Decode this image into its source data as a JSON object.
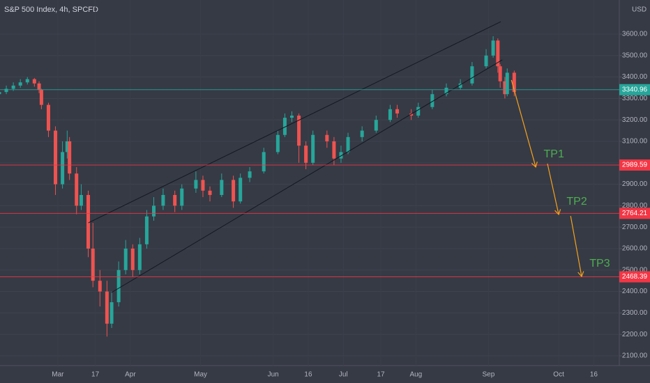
{
  "chart_data": {
    "type": "candlestick",
    "title": "S&P 500 Index, 4h, SPCFD",
    "currency": "USD",
    "xlim": [
      36.3,
      300.9
    ],
    "ylim": [
      2054.5,
      3759
    ],
    "xticks": [
      {
        "value": 61,
        "label": "Mar"
      },
      {
        "value": 77,
        "label": "17"
      },
      {
        "value": 92,
        "label": "Apr"
      },
      {
        "value": 122,
        "label": "May"
      },
      {
        "value": 153,
        "label": "Jun"
      },
      {
        "value": 168,
        "label": "16"
      },
      {
        "value": 183,
        "label": "Jul"
      },
      {
        "value": 199,
        "label": "17"
      },
      {
        "value": 214,
        "label": "Aug"
      },
      {
        "value": 245,
        "label": "Sep"
      },
      {
        "value": 275,
        "label": "Oct"
      },
      {
        "value": 290,
        "label": "16"
      }
    ],
    "yticks": [
      {
        "value": 2100,
        "label": "2100.00"
      },
      {
        "value": 2200,
        "label": "2200.00"
      },
      {
        "value": 2300,
        "label": "2300.00"
      },
      {
        "value": 2400,
        "label": "2400.00"
      },
      {
        "value": 2500,
        "label": "2500.00"
      },
      {
        "value": 2600,
        "label": "2600.00"
      },
      {
        "value": 2700,
        "label": "2700.00"
      },
      {
        "value": 2800,
        "label": "2800.00"
      },
      {
        "value": 2900,
        "label": "2900.00"
      },
      {
        "value": 3000,
        "label": "3000.00"
      },
      {
        "value": 3100,
        "label": "3100.00"
      },
      {
        "value": 3200,
        "label": "3200.00"
      },
      {
        "value": 3300,
        "label": "3300.00"
      },
      {
        "value": 3400,
        "label": "3400.00"
      },
      {
        "value": 3500,
        "label": "3500.00"
      },
      {
        "value": 3600,
        "label": "3600.00"
      }
    ],
    "up_color": "#26a69a",
    "down_color": "#ef5350",
    "candles": [
      {
        "x": 36,
        "open": 3320,
        "high": 3345,
        "low": 3310,
        "close": 3330
      },
      {
        "x": 39,
        "open": 3330,
        "high": 3360,
        "low": 3320,
        "close": 3345
      },
      {
        "x": 42,
        "open": 3345,
        "high": 3375,
        "low": 3335,
        "close": 3360
      },
      {
        "x": 45,
        "open": 3360,
        "high": 3390,
        "low": 3350,
        "close": 3375
      },
      {
        "x": 48,
        "open": 3375,
        "high": 3400,
        "low": 3365,
        "close": 3390
      },
      {
        "x": 51,
        "open": 3390,
        "high": 3395,
        "low": 3355,
        "close": 3370
      },
      {
        "x": 53,
        "open": 3370,
        "high": 3380,
        "low": 3325,
        "close": 3340
      },
      {
        "x": 54,
        "open": 3340,
        "high": 3345,
        "low": 3250,
        "close": 3270
      },
      {
        "x": 57,
        "open": 3270,
        "high": 3280,
        "low": 3120,
        "close": 3150
      },
      {
        "x": 60,
        "open": 3150,
        "high": 3170,
        "low": 2850,
        "close": 2900
      },
      {
        "x": 63,
        "open": 2900,
        "high": 3100,
        "low": 2880,
        "close": 3050
      },
      {
        "x": 65,
        "open": 3050,
        "high": 3150,
        "low": 3020,
        "close": 3100
      },
      {
        "x": 66,
        "open": 3100,
        "high": 3120,
        "low": 2920,
        "close": 2950
      },
      {
        "x": 69,
        "open": 2950,
        "high": 2980,
        "low": 2760,
        "close": 2800
      },
      {
        "x": 71,
        "open": 2800,
        "high": 2900,
        "low": 2780,
        "close": 2850
      },
      {
        "x": 74,
        "open": 2850,
        "high": 2870,
        "low": 2560,
        "close": 2600
      },
      {
        "x": 76,
        "open": 2600,
        "high": 2720,
        "low": 2420,
        "close": 2450
      },
      {
        "x": 79,
        "open": 2450,
        "high": 2500,
        "low": 2330,
        "close": 2400
      },
      {
        "x": 82,
        "open": 2400,
        "high": 2450,
        "low": 2190,
        "close": 2250
      },
      {
        "x": 84,
        "open": 2250,
        "high": 2400,
        "low": 2230,
        "close": 2350
      },
      {
        "x": 87,
        "open": 2350,
        "high": 2540,
        "low": 2330,
        "close": 2500
      },
      {
        "x": 90,
        "open": 2500,
        "high": 2640,
        "low": 2480,
        "close": 2600
      },
      {
        "x": 93,
        "open": 2600,
        "high": 2620,
        "low": 2470,
        "close": 2500
      },
      {
        "x": 96,
        "open": 2500,
        "high": 2650,
        "low": 2480,
        "close": 2620
      },
      {
        "x": 99,
        "open": 2620,
        "high": 2780,
        "low": 2600,
        "close": 2750
      },
      {
        "x": 102,
        "open": 2750,
        "high": 2840,
        "low": 2730,
        "close": 2800
      },
      {
        "x": 106,
        "open": 2800,
        "high": 2880,
        "low": 2780,
        "close": 2850
      },
      {
        "x": 111,
        "open": 2850,
        "high": 2870,
        "low": 2770,
        "close": 2800
      },
      {
        "x": 114,
        "open": 2800,
        "high": 2900,
        "low": 2780,
        "close": 2880
      },
      {
        "x": 120,
        "open": 2880,
        "high": 2960,
        "low": 2860,
        "close": 2920
      },
      {
        "x": 123,
        "open": 2920,
        "high": 2940,
        "low": 2840,
        "close": 2870
      },
      {
        "x": 126,
        "open": 2870,
        "high": 2890,
        "low": 2820,
        "close": 2850
      },
      {
        "x": 131,
        "open": 2850,
        "high": 2950,
        "low": 2840,
        "close": 2920
      },
      {
        "x": 136,
        "open": 2920,
        "high": 2940,
        "low": 2790,
        "close": 2820
      },
      {
        "x": 139,
        "open": 2820,
        "high": 2950,
        "low": 2810,
        "close": 2930
      },
      {
        "x": 143,
        "open": 2930,
        "high": 2980,
        "low": 2910,
        "close": 2960
      },
      {
        "x": 149,
        "open": 2960,
        "high": 3070,
        "low": 2950,
        "close": 3050
      },
      {
        "x": 155,
        "open": 3050,
        "high": 3150,
        "low": 3040,
        "close": 3130
      },
      {
        "x": 158,
        "open": 3130,
        "high": 3230,
        "low": 3120,
        "close": 3210
      },
      {
        "x": 161,
        "open": 3210,
        "high": 3240,
        "low": 3190,
        "close": 3220
      },
      {
        "x": 164,
        "open": 3220,
        "high": 3230,
        "low": 3000,
        "close": 3080
      },
      {
        "x": 167,
        "open": 3080,
        "high": 3100,
        "low": 2970,
        "close": 3000
      },
      {
        "x": 170,
        "open": 3000,
        "high": 3150,
        "low": 2990,
        "close": 3130
      },
      {
        "x": 176,
        "open": 3130,
        "high": 3150,
        "low": 3070,
        "close": 3100
      },
      {
        "x": 179,
        "open": 3100,
        "high": 3120,
        "low": 2990,
        "close": 3020
      },
      {
        "x": 182,
        "open": 3020,
        "high": 3080,
        "low": 3000,
        "close": 3050
      },
      {
        "x": 185,
        "open": 3050,
        "high": 3140,
        "low": 3040,
        "close": 3120
      },
      {
        "x": 191,
        "open": 3120,
        "high": 3170,
        "low": 3100,
        "close": 3150
      },
      {
        "x": 197,
        "open": 3150,
        "high": 3220,
        "low": 3140,
        "close": 3200
      },
      {
        "x": 203,
        "open": 3200,
        "high": 3270,
        "low": 3190,
        "close": 3250
      },
      {
        "x": 206,
        "open": 3250,
        "high": 3270,
        "low": 3210,
        "close": 3230
      },
      {
        "x": 212,
        "open": 3230,
        "high": 3250,
        "low": 3200,
        "close": 3220
      },
      {
        "x": 215,
        "open": 3220,
        "high": 3280,
        "low": 3210,
        "close": 3260
      },
      {
        "x": 221,
        "open": 3260,
        "high": 3340,
        "low": 3250,
        "close": 3320
      },
      {
        "x": 227,
        "open": 3320,
        "high": 3370,
        "low": 3310,
        "close": 3350
      },
      {
        "x": 233,
        "open": 3350,
        "high": 3390,
        "low": 3340,
        "close": 3370
      },
      {
        "x": 238,
        "open": 3370,
        "high": 3470,
        "low": 3360,
        "close": 3450
      },
      {
        "x": 244,
        "open": 3450,
        "high": 3530,
        "low": 3440,
        "close": 3500
      },
      {
        "x": 247,
        "open": 3500,
        "high": 3590,
        "low": 3490,
        "close": 3570
      },
      {
        "x": 249,
        "open": 3570,
        "high": 3580,
        "low": 3420,
        "close": 3450
      },
      {
        "x": 250,
        "open": 3450,
        "high": 3460,
        "low": 3350,
        "close": 3380
      },
      {
        "x": 252,
        "open": 3380,
        "high": 3400,
        "low": 3300,
        "close": 3320
      },
      {
        "x": 253,
        "open": 3320,
        "high": 3440,
        "low": 3310,
        "close": 3420
      },
      {
        "x": 256,
        "open": 3420,
        "high": 3430,
        "low": 3310,
        "close": 3330
      }
    ],
    "price_lines": [
      {
        "value": 3340.96,
        "color": "#26a69a"
      },
      {
        "value": 2989.59,
        "color": "#f23645"
      },
      {
        "value": 2764.21,
        "color": "#f23645"
      },
      {
        "value": 2468.39,
        "color": "#f23645"
      }
    ],
    "trend_lines": [
      {
        "x": [
          74.05,
          250.3
        ],
        "y": [
          2720,
          3658
        ]
      },
      {
        "x": [
          83.9,
          250.9
        ],
        "y": [
          2395,
          3480
        ]
      }
    ],
    "arrows": [
      {
        "x": [
          254.8,
          265.2
        ],
        "y": [
          3386,
          2980
        ],
        "label": "TP1"
      },
      {
        "x": [
          270.2,
          275.0
        ],
        "y": [
          2996,
          2759
        ],
        "label": "TP2"
      },
      {
        "x": [
          280.1,
          284.8
        ],
        "y": [
          2752,
          2470
        ],
        "label": "TP3"
      }
    ]
  }
}
